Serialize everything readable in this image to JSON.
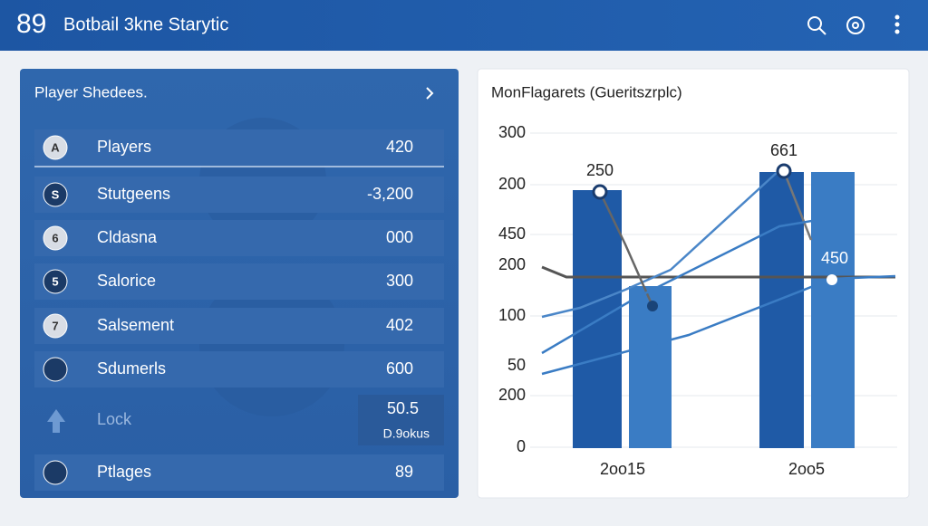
{
  "header": {
    "badge": "89",
    "title": "Botbail 3kne Starytic"
  },
  "players_panel": {
    "title": "Player Shedees.",
    "rows": [
      {
        "icon": "A",
        "label": "Players",
        "value": "420"
      },
      {
        "icon": "S",
        "label": "Stutgeens",
        "value": "-3,200"
      },
      {
        "icon": "6",
        "label": "Cldasna",
        "value": "000"
      },
      {
        "icon": "5",
        "label": "Salorice",
        "value": "300"
      },
      {
        "icon": "7",
        "label": "Salsement",
        "value": "402"
      },
      {
        "label": "Sdumerls",
        "value": "600"
      },
      {
        "label": "Lock",
        "value": "50.5",
        "caption": "D.9okus"
      },
      {
        "label": "Ptlages",
        "value": "89"
      }
    ]
  },
  "chart_panel": {
    "title": "MonFlagarets (Gueritszrplc)",
    "y_labels": [
      "300",
      "200",
      "450",
      "200",
      "100",
      "50",
      "200",
      "0"
    ],
    "x_labels": [
      "2oo15",
      "2oo5"
    ],
    "point_labels": [
      "250",
      "661",
      "450"
    ]
  }
}
